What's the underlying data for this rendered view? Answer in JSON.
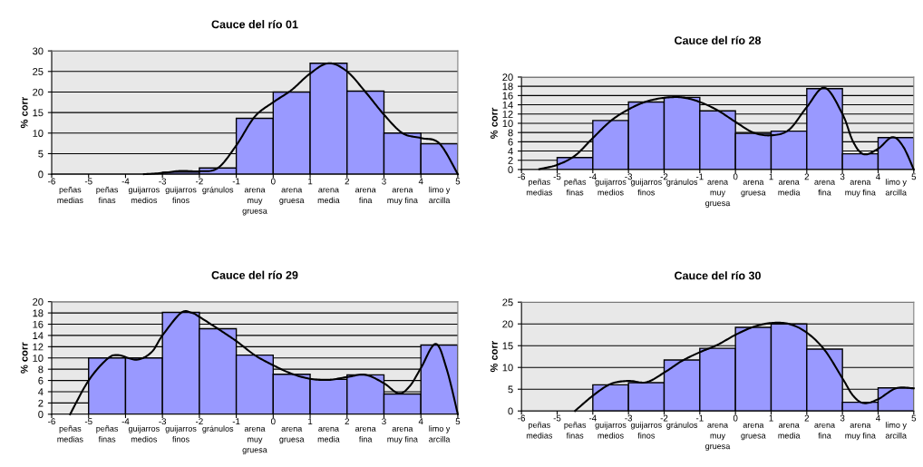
{
  "chart_data": [
    {
      "type": "histogram",
      "title": "Cauce del río 01",
      "ylabel": "% corr",
      "bins": [
        -6,
        -5,
        -4,
        -3,
        -2,
        -1,
        0,
        1,
        2,
        3,
        4,
        5
      ],
      "values": [
        0,
        0,
        0,
        0.5,
        1.5,
        13.6,
        20,
        27,
        20.2,
        10,
        7.4
      ],
      "color": "#9999ff",
      "categories": [
        "peñas\nmedias",
        "peñas\nfinas",
        "guijarros\nmedios",
        "guijarros\nfinos",
        "gránulos",
        "arena\nmuy\ngruesa",
        "arena\ngruesa",
        "arena\nmedia",
        "arena\nfina",
        "arena\nmuy fina",
        "limo y\narcilla"
      ],
      "series": [
        {
          "type": "line",
          "color": "#000000",
          "x": [
            -3.5,
            -3,
            -2.5,
            -2,
            -1.5,
            -1,
            -0.5,
            0,
            0.5,
            1,
            1.5,
            2,
            2.5,
            3,
            3.5,
            4,
            4.5,
            5
          ],
          "values": [
            0,
            0.3,
            0.8,
            0.7,
            1.5,
            7,
            14,
            17.5,
            20.5,
            24.5,
            27,
            25,
            20,
            14.5,
            10,
            8.8,
            7.5,
            0
          ]
        }
      ],
      "xlim": [
        -6,
        5
      ],
      "xticks": [
        -6,
        -5,
        -4,
        -3,
        -2,
        -1,
        0,
        1,
        2,
        3,
        4,
        5
      ],
      "ylim": [
        0,
        30
      ],
      "yticks": [
        0,
        5,
        10,
        15,
        20,
        25,
        30
      ],
      "grid": "y"
    },
    {
      "type": "histogram",
      "title": "Cauce del río 28",
      "ylabel": "% corr",
      "bins": [
        -6,
        -5,
        -4,
        -3,
        -2,
        -1,
        0,
        1,
        2,
        3,
        4,
        5
      ],
      "values": [
        0,
        2.6,
        10.6,
        14.6,
        15.6,
        12.7,
        7.8,
        8.3,
        17.5,
        3.4,
        6.9
      ],
      "color": "#9999ff",
      "categories": [
        "peñas\nmedias",
        "peñas\nfinas",
        "guijarros\nmedios",
        "guijarros\nfinos",
        "gránulos",
        "arena\nmuy\ngruesa",
        "arena\ngruesa",
        "arena\nmedia",
        "arena\nfina",
        "arena\nmuy fina",
        "limo y\narcilla"
      ],
      "series": [
        {
          "type": "line",
          "color": "#000000",
          "x": [
            -5.5,
            -5,
            -4.5,
            -4,
            -3.5,
            -3,
            -2.5,
            -2,
            -1.5,
            -1,
            -0.5,
            0,
            0.5,
            1,
            1.5,
            2,
            2.5,
            3,
            3.3,
            3.6,
            4,
            4.4,
            4.7,
            5
          ],
          "values": [
            0.1,
            1,
            3,
            6.8,
            10.5,
            13,
            14.7,
            15.5,
            15.6,
            14.6,
            12.8,
            10.3,
            8,
            7.4,
            8.6,
            13.5,
            17.7,
            12,
            6,
            3.3,
            4.5,
            7,
            5,
            0
          ]
        }
      ],
      "xlim": [
        -6,
        5
      ],
      "xticks": [
        -6,
        -5,
        -4,
        -3,
        -2,
        -1,
        0,
        1,
        2,
        3,
        4,
        5
      ],
      "ylim": [
        0,
        20
      ],
      "yticks": [
        0,
        2,
        4,
        6,
        8,
        10,
        12,
        14,
        16,
        18,
        20
      ],
      "grid": "y"
    },
    {
      "type": "histogram",
      "title": "Cauce del río 29",
      "ylabel": "% corr",
      "bins": [
        -6,
        -5,
        -4,
        -3,
        -2,
        -1,
        0,
        1,
        2,
        3,
        4,
        5
      ],
      "values": [
        0,
        10,
        10,
        18.1,
        15.2,
        10.5,
        7.1,
        6.2,
        7,
        3.6,
        12.3
      ],
      "color": "#9999ff",
      "categories": [
        "peñas\nmedias",
        "peñas\nfinas",
        "guijarros\nmedios",
        "guijarros\nfinos",
        "gránulos",
        "arena\nmuy\ngruesa",
        "arena\ngruesa",
        "arena\nmedia",
        "arena\nfina",
        "arena\nmuy fina",
        "limo y\narcilla"
      ],
      "series": [
        {
          "type": "line",
          "color": "#000000",
          "x": [
            -5.5,
            -5,
            -4.5,
            -4.2,
            -3.7,
            -3.3,
            -3,
            -2.5,
            -2.2,
            -2,
            -1.5,
            -1,
            -0.5,
            0,
            0.5,
            1,
            1.5,
            2,
            2.5,
            3,
            3.4,
            3.7,
            4,
            4.4,
            4.7,
            5
          ],
          "values": [
            0,
            6,
            9.8,
            10.5,
            9.7,
            11,
            14,
            18,
            18,
            17.3,
            15.2,
            13,
            10.5,
            8.7,
            7.2,
            6.3,
            6.1,
            6.6,
            7,
            5.5,
            3.7,
            5,
            8.2,
            12.5,
            8,
            0
          ]
        }
      ],
      "xlim": [
        -6,
        5
      ],
      "xticks": [
        -6,
        -5,
        -4,
        -3,
        -2,
        -1,
        0,
        1,
        2,
        3,
        4,
        5
      ],
      "ylim": [
        0,
        20
      ],
      "yticks": [
        0,
        2,
        4,
        6,
        8,
        10,
        12,
        14,
        16,
        18,
        20
      ],
      "grid": "y"
    },
    {
      "type": "histogram",
      "title": "Cauce del río 30",
      "ylabel": "% corr",
      "bins": [
        -6,
        -5,
        -4,
        -3,
        -2,
        -1,
        0,
        1,
        2,
        3,
        4,
        5
      ],
      "values": [
        0,
        0,
        6,
        6.5,
        11.7,
        14.4,
        19.2,
        20,
        14.2,
        2,
        5.3
      ],
      "color": "#9999ff",
      "categories": [
        "peñas\nmedias",
        "peñas\nfinas",
        "guijarros\nmedios",
        "guijarros\nfinos",
        "gránulos",
        "arena\nmuy\ngruesa",
        "arena\ngruesa",
        "arena\nmedia",
        "arena\nfina",
        "arena\nmuy fina",
        "limo y\narcilla"
      ],
      "series": [
        {
          "type": "line",
          "color": "#000000",
          "x": [
            -4.5,
            -4,
            -3.5,
            -3,
            -2.5,
            -2,
            -1.5,
            -1,
            -0.5,
            0,
            0.5,
            1,
            1.5,
            2,
            2.5,
            3,
            3.3,
            3.6,
            4,
            4.5,
            5
          ],
          "values": [
            0,
            3.5,
            6.2,
            6.9,
            6.6,
            8.8,
            11.5,
            13.5,
            15.2,
            17.5,
            19.3,
            20.2,
            20,
            18,
            14,
            7.5,
            3.5,
            1.8,
            2.7,
            5.2,
            5.2
          ]
        }
      ],
      "xlim": [
        -6,
        5
      ],
      "xticks": [
        -6,
        -5,
        -4,
        -3,
        -2,
        -1,
        0,
        1,
        2,
        3,
        4,
        5
      ],
      "ylim": [
        0,
        25
      ],
      "yticks": [
        0,
        5,
        10,
        15,
        20,
        25
      ],
      "grid": "y"
    }
  ]
}
